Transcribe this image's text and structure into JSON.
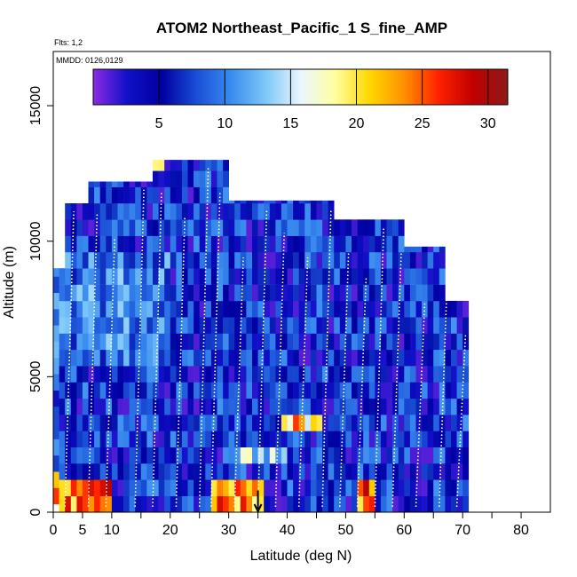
{
  "chart_data": {
    "type": "heatmap",
    "title": "ATOM2 Northeast_Pacific_1 S_fine_AMP",
    "flights_note": "Flts: 1,2",
    "date_note": "MMDD: 0126,0129",
    "xlabel": "Latitude (deg N)",
    "ylabel": "Altitude (m)",
    "xlim": [
      0,
      85
    ],
    "ylim": [
      0,
      17000
    ],
    "x_ticks": [
      0,
      5,
      10,
      20,
      30,
      40,
      50,
      60,
      70,
      80
    ],
    "x_minor_ticks": [
      15,
      25,
      35,
      45,
      55,
      65,
      75
    ],
    "y_ticks": [
      0,
      5000,
      10000,
      15000
    ],
    "colorbar": {
      "ticks": [
        5,
        10,
        15,
        20,
        25,
        30
      ],
      "range": [
        0,
        31.5
      ],
      "colors": [
        "#8a2be2",
        "#1010c8",
        "#0000a0",
        "#1a4fd6",
        "#3a8cf0",
        "#7ec8f8",
        "#eaf6ff",
        "#ffffa0",
        "#ffd700",
        "#ff9000",
        "#ff2000",
        "#c00000",
        "#8b1a1a"
      ]
    },
    "marker_latitude": 35,
    "grid": false,
    "legend": "colorbar-top"
  }
}
